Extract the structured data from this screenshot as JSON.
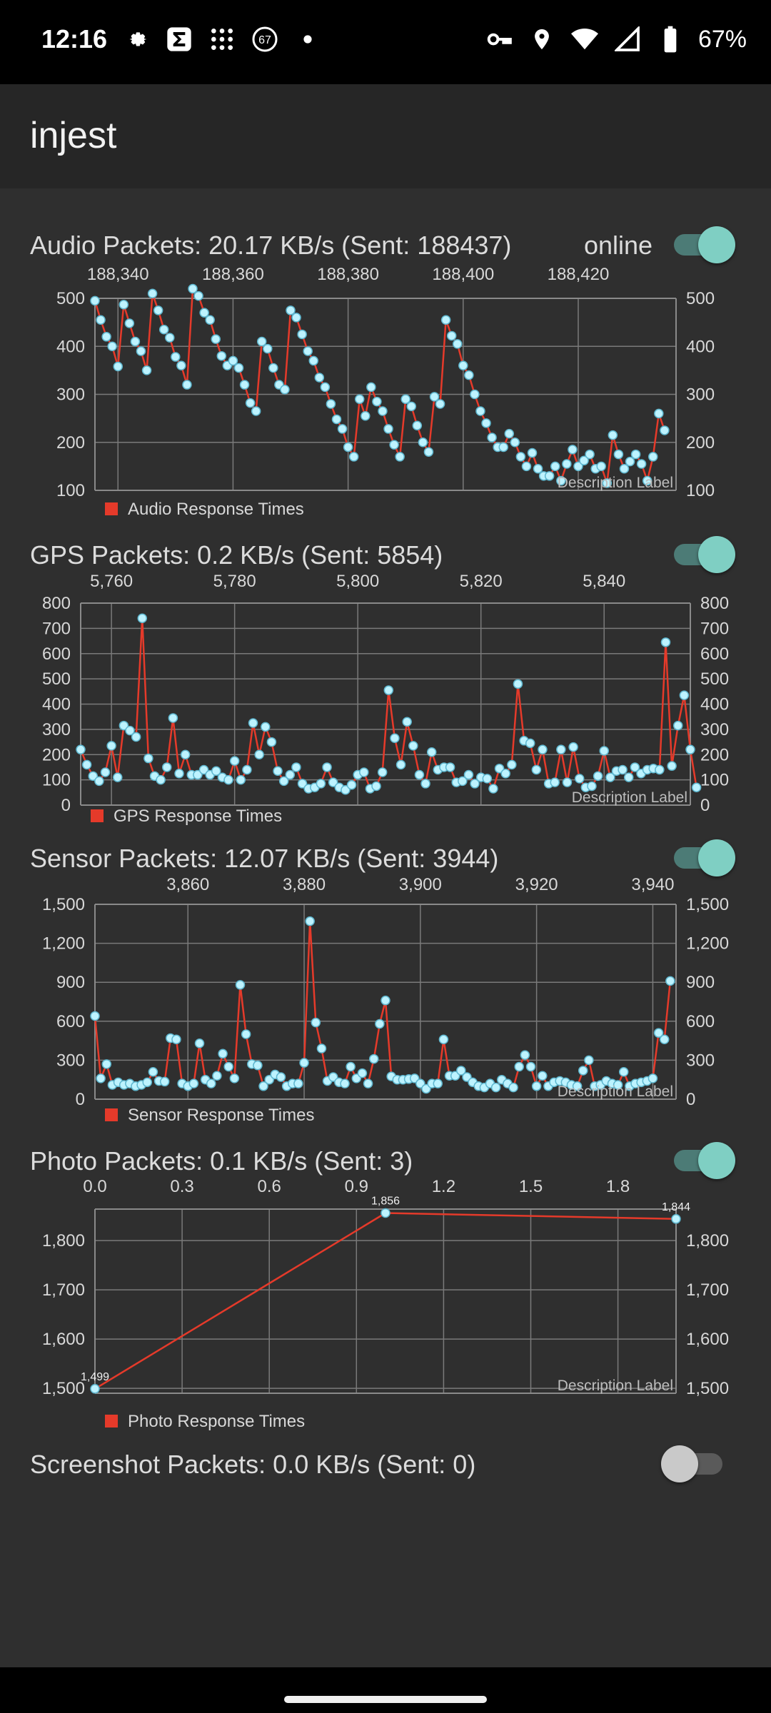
{
  "status": {
    "time": "12:16",
    "battery": "67%",
    "notification_badge": "67",
    "icons_left": [
      "settings-gear-icon",
      "sigma-icon",
      "grid-dots-icon",
      "badge-67-icon",
      "dot-icon"
    ],
    "icons_right": [
      "key-icon",
      "location-icon",
      "wifi-icon",
      "signal-icon",
      "battery-icon"
    ]
  },
  "app": {
    "title": "injest"
  },
  "audio": {
    "title": "Audio Packets: 20.17 KB/s (Sent: 188437)",
    "status_label": "online",
    "toggle_on": true
  },
  "gps": {
    "title": "GPS Packets: 0.2 KB/s (Sent: 5854)",
    "toggle_on": true
  },
  "sensor": {
    "title": "Sensor Packets: 12.07 KB/s (Sent: 3944)",
    "toggle_on": true
  },
  "photo": {
    "title": "Photo Packets: 0.1 KB/s (Sent: 3)",
    "toggle_on": true
  },
  "screenshot": {
    "title": "Screenshot Packets: 0.0 KB/s (Sent: 0)",
    "toggle_on": false
  },
  "colors": {
    "line": "#e53a2a",
    "point": "#bdf3ff",
    "grid": "#7a7a7a",
    "text": "#d8d8d8",
    "toggle_on": "#7fcfc3"
  },
  "chart_data": [
    {
      "type": "line",
      "legend": "Audio Response Times",
      "description": "Description Label",
      "xlim": [
        188336,
        188437
      ],
      "ylim": [
        100,
        500
      ],
      "x_ticks": [
        "188,340",
        "188,360",
        "188,380",
        "188,400",
        "188,420"
      ],
      "x_tick_values": [
        188340,
        188360,
        188380,
        188400,
        188420
      ],
      "y_ticks": [
        "100",
        "200",
        "300",
        "400",
        "500"
      ],
      "y_tick_values": [
        100,
        200,
        300,
        400,
        500
      ],
      "x_start": 188336,
      "x_step": 1,
      "values": [
        495,
        455,
        420,
        400,
        358,
        487,
        448,
        410,
        390,
        350,
        510,
        475,
        435,
        418,
        378,
        360,
        320,
        520,
        505,
        470,
        455,
        415,
        380,
        360,
        370,
        355,
        320,
        282,
        265,
        410,
        395,
        355,
        320,
        310,
        475,
        460,
        425,
        390,
        370,
        335,
        315,
        280,
        248,
        228,
        190,
        170,
        290,
        255,
        315,
        285,
        265,
        228,
        195,
        170,
        290,
        275,
        235,
        200,
        180,
        295,
        280,
        455,
        422,
        405,
        360,
        340,
        300,
        265,
        240,
        210,
        190,
        190,
        218,
        200,
        170,
        150,
        178,
        145,
        130,
        130,
        150,
        120,
        155,
        185,
        150,
        162,
        175,
        145,
        150,
        115,
        215,
        175,
        145,
        160,
        175,
        155,
        120,
        170,
        260,
        225
      ],
      "show_point_labels": false
    },
    {
      "type": "line",
      "legend": "GPS Response Times",
      "description": "Description Label",
      "xlim": [
        5755,
        5854
      ],
      "ylim": [
        0,
        800
      ],
      "x_ticks": [
        "5,760",
        "5,780",
        "5,800",
        "5,820",
        "5,840"
      ],
      "x_tick_values": [
        5760,
        5780,
        5800,
        5820,
        5840
      ],
      "y_ticks": [
        "0",
        "100",
        "200",
        "300",
        "400",
        "500",
        "600",
        "700",
        "800"
      ],
      "y_tick_values": [
        0,
        100,
        200,
        300,
        400,
        500,
        600,
        700,
        800
      ],
      "x_start": 5755,
      "x_step": 1,
      "values": [
        220,
        160,
        115,
        95,
        130,
        235,
        110,
        315,
        295,
        270,
        740,
        185,
        115,
        100,
        150,
        345,
        125,
        200,
        120,
        120,
        140,
        120,
        135,
        110,
        100,
        175,
        100,
        140,
        325,
        200,
        310,
        250,
        135,
        95,
        120,
        150,
        85,
        65,
        70,
        85,
        150,
        90,
        70,
        60,
        80,
        120,
        130,
        65,
        75,
        130,
        455,
        265,
        160,
        330,
        235,
        120,
        85,
        210,
        140,
        150,
        150,
        90,
        95,
        120,
        85,
        110,
        105,
        65,
        145,
        125,
        160,
        480,
        255,
        245,
        140,
        220,
        85,
        90,
        220,
        90,
        230,
        105,
        70,
        75,
        115,
        215,
        110,
        135,
        140,
        110,
        150,
        125,
        140,
        145,
        140,
        645,
        155,
        315,
        435,
        220,
        70
      ],
      "show_point_labels": false
    },
    {
      "type": "line",
      "legend": "Sensor Response Times",
      "description": "Description Label",
      "xlim": [
        3844,
        3944
      ],
      "ylim": [
        0,
        1500
      ],
      "x_ticks": [
        "3,860",
        "3,880",
        "3,900",
        "3,920",
        "3,940"
      ],
      "x_tick_values": [
        3860,
        3880,
        3900,
        3920,
        3940
      ],
      "y_ticks": [
        "0",
        "300",
        "600",
        "900",
        "1,200",
        "1,500"
      ],
      "y_tick_values": [
        0,
        300,
        600,
        900,
        1200,
        1500
      ],
      "x_start": 3844,
      "x_step": 1,
      "values": [
        640,
        160,
        270,
        110,
        130,
        110,
        120,
        100,
        110,
        130,
        210,
        140,
        135,
        470,
        460,
        120,
        100,
        120,
        430,
        150,
        120,
        180,
        350,
        250,
        160,
        880,
        500,
        270,
        260,
        100,
        150,
        190,
        170,
        100,
        120,
        120,
        280,
        1370,
        590,
        390,
        140,
        170,
        130,
        120,
        250,
        160,
        200,
        120,
        310,
        580,
        760,
        175,
        150,
        150,
        155,
        160,
        120,
        80,
        120,
        120,
        460,
        180,
        180,
        220,
        170,
        130,
        100,
        90,
        120,
        90,
        150,
        120,
        90,
        250,
        340,
        250,
        100,
        180,
        100,
        130,
        140,
        130,
        110,
        100,
        220,
        300,
        100,
        110,
        140,
        120,
        110,
        210,
        100,
        120,
        130,
        140,
        160,
        510,
        460,
        910
      ],
      "show_point_labels": false
    },
    {
      "type": "line",
      "legend": "Photo Response Times",
      "description": "Description Label",
      "xlim": [
        0,
        2
      ],
      "ylim": [
        1490,
        1864
      ],
      "x_ticks": [
        "0.0",
        "0.3",
        "0.6",
        "0.9",
        "1.2",
        "1.5",
        "1.8"
      ],
      "x_tick_values": [
        0,
        0.3,
        0.6,
        0.9,
        1.2,
        1.5,
        1.8
      ],
      "y_ticks": [
        "1,500",
        "1,600",
        "1,700",
        "1,800"
      ],
      "y_tick_values": [
        1500,
        1600,
        1700,
        1800
      ],
      "x": [
        0,
        1,
        2
      ],
      "values": [
        1499,
        1856,
        1844
      ],
      "point_labels": [
        "1,499",
        "1,856",
        "1,844"
      ],
      "show_point_labels": true
    }
  ]
}
